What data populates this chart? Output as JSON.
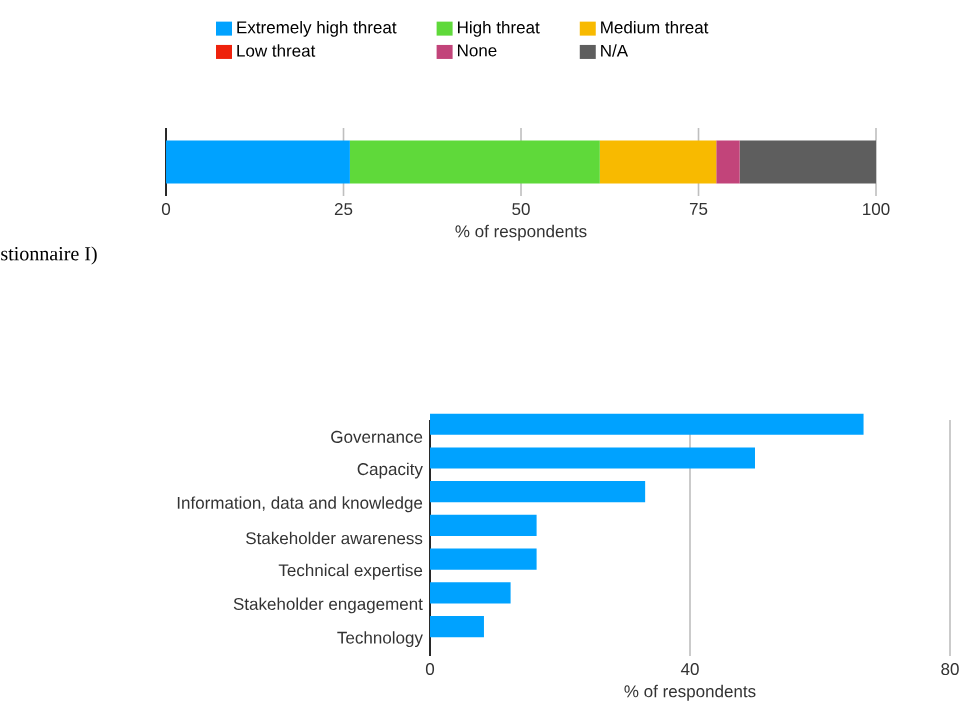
{
  "chart_data": [
    {
      "type": "bar",
      "orientation": "horizontal",
      "stacked": true,
      "categories": [
        null
      ],
      "xlabel": "% of respondents",
      "xlim": [
        0,
        100
      ],
      "xticks": [
        0,
        25,
        50,
        75,
        100
      ],
      "grid": "x",
      "legend": "top",
      "series": [
        {
          "name": "Extremely high threat",
          "color": "#00a2ff",
          "values": [
            25.9
          ]
        },
        {
          "name": "High threat",
          "color": "#5fd93a",
          "values": [
            35.2
          ]
        },
        {
          "name": "Medium threat",
          "color": "#f8ba00",
          "values": [
            16.4
          ]
        },
        {
          "name": "Low threat",
          "color": "#ee220c",
          "values": [
            0
          ]
        },
        {
          "name": "None",
          "color": "#c2447a",
          "values": [
            3.3
          ]
        },
        {
          "name": "N/A",
          "color": "#5e5e5e",
          "values": [
            19.2
          ]
        }
      ],
      "annotations": [
        "stionnaire I)"
      ]
    },
    {
      "type": "bar",
      "orientation": "horizontal",
      "categories": [
        "Governance",
        "Capacity",
        "Information, data and knowledge",
        "Stakeholder awareness",
        "Technical expertise",
        "Stakeholder engagement",
        "Technology"
      ],
      "values": [
        66.7,
        50,
        33.1,
        16.4,
        16.4,
        12.4,
        8.3
      ],
      "color": "#00a2ff",
      "xlabel": "% of respondents",
      "xlim": [
        0,
        80
      ],
      "xticks": [
        0,
        40,
        80
      ],
      "grid": "x"
    }
  ]
}
